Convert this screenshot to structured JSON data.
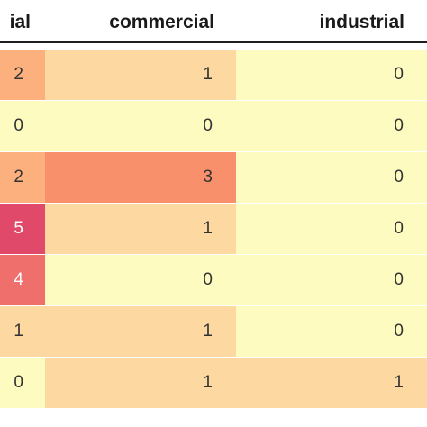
{
  "columns": [
    {
      "key": "residential",
      "label": "ial"
    },
    {
      "key": "commercial",
      "label": "commercial"
    },
    {
      "key": "industrial",
      "label": "industrial"
    }
  ],
  "rows": [
    [
      "2",
      "1",
      "0"
    ],
    [
      "0",
      "0",
      "0"
    ],
    [
      "2",
      "3",
      "0"
    ],
    [
      "5",
      "1",
      "0"
    ],
    [
      "4",
      "0",
      "0"
    ],
    [
      "1",
      "1",
      "0"
    ],
    [
      "0",
      "1",
      "1"
    ]
  ],
  "colors": {
    "v0": "#fefbc0",
    "v1": "#fdd8a0",
    "v2": "#fcb07e",
    "v3": "#f8906c",
    "v4": "#ef6f6c",
    "v5": "#e0496a"
  }
}
